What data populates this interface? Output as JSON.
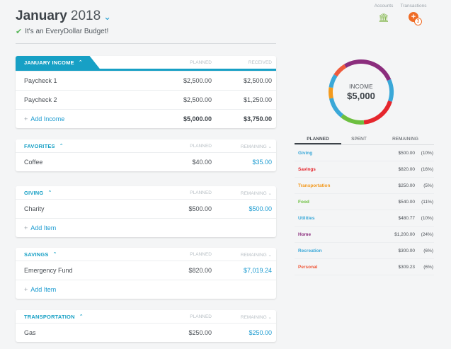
{
  "header": {
    "month": "January",
    "year": "2018",
    "subtitle": "It's an EveryDollar Budget!"
  },
  "topbar": {
    "accounts_label": "Accounts",
    "transactions_label": "Transactions",
    "transactions_badge": "3",
    "accounts_icon": "bank-icon",
    "transactions_icon": "plus-circle-icon"
  },
  "income": {
    "tab_label": "JANUARY INCOME",
    "col_planned": "PLANNED",
    "col_received": "RECEIVED",
    "rows": [
      {
        "name": "Paycheck 1",
        "planned": "$2,500.00",
        "received": "$2,500.00",
        "received_fraction": 1.0
      },
      {
        "name": "Paycheck 2",
        "planned": "$2,500.00",
        "received": "$1,250.00",
        "received_fraction": 0.5
      }
    ],
    "add_label": "Add Income",
    "total_planned": "$5,000.00",
    "total_received": "$3,750.00"
  },
  "favorites": {
    "tab_label": "FAVORITES",
    "col_planned": "PLANNED",
    "col_remaining": "REMAINING",
    "rows": [
      {
        "name": "Coffee",
        "planned": "$40.00",
        "remaining": "$35.00",
        "spent_fraction": 0.88
      }
    ]
  },
  "giving": {
    "tab_label": "GIVING",
    "col_planned": "PLANNED",
    "col_remaining": "REMAINING",
    "rows": [
      {
        "name": "Charity",
        "planned": "$500.00",
        "remaining": "$500.00",
        "spent_fraction": 1.0
      }
    ],
    "add_label": "Add Item"
  },
  "savings": {
    "tab_label": "SAVINGS",
    "col_planned": "PLANNED",
    "col_remaining": "REMAINING",
    "rows": [
      {
        "name": "Emergency Fund",
        "planned": "$820.00",
        "remaining": "$7,019.24",
        "spent_fraction": 1.0
      }
    ],
    "add_label": "Add Item"
  },
  "transportation": {
    "tab_label": "TRANSPORTATION",
    "col_planned": "PLANNED",
    "col_remaining": "REMAINING",
    "rows": [
      {
        "name": "Gas",
        "planned": "$250.00",
        "remaining": "$250.00",
        "spent_fraction": 1.0
      }
    ]
  },
  "donut": {
    "label": "INCOME",
    "value": "$5,000"
  },
  "summary": {
    "tabs": [
      "PLANNED",
      "SPENT",
      "REMAINING"
    ],
    "rows": [
      {
        "category": "Giving",
        "amount": "$500.00",
        "percent": "(10%)",
        "color": "#3aa8d8"
      },
      {
        "category": "Savings",
        "amount": "$820.00",
        "percent": "(16%)",
        "color": "#e5262d"
      },
      {
        "category": "Transportation",
        "amount": "$250.00",
        "percent": "(5%)",
        "color": "#f39a1e"
      },
      {
        "category": "Food",
        "amount": "$540.00",
        "percent": "(11%)",
        "color": "#6cbf3f"
      },
      {
        "category": "Utilities",
        "amount": "$480.77",
        "percent": "(10%)",
        "color": "#3aa8d8"
      },
      {
        "category": "Home",
        "amount": "$1,200.00",
        "percent": "(24%)",
        "color": "#8b2d7d"
      },
      {
        "category": "Recreation",
        "amount": "$300.00",
        "percent": "(6%)",
        "color": "#3aa8d8"
      },
      {
        "category": "Personal",
        "amount": "$309.23",
        "percent": "(6%)",
        "color": "#ef5a3c"
      }
    ]
  },
  "colors": {
    "accent": "#17a0c5",
    "link": "#1c9bd0",
    "check": "#5cb85c"
  }
}
